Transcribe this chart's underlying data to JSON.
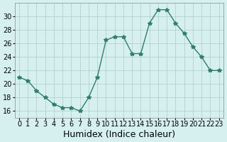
{
  "x": [
    0,
    1,
    2,
    3,
    4,
    5,
    6,
    7,
    8,
    9,
    10,
    11,
    12,
    13,
    14,
    15,
    16,
    17,
    18,
    19,
    20,
    21,
    22,
    23
  ],
  "y": [
    21,
    20.5,
    19,
    18,
    17,
    16.5,
    16.5,
    16,
    18,
    21,
    26.5,
    27,
    27,
    24.5,
    24.5,
    29,
    31,
    31,
    29,
    27.5,
    25.5,
    24,
    22,
    22
  ],
  "line_color": "#2e7d6e",
  "marker": "*",
  "marker_size": 4,
  "bg_color": "#d6f0f0",
  "grid_color": "#b0c8c8",
  "xlabel": "Humidex (Indice chaleur)",
  "xlabel_fontsize": 9,
  "tick_fontsize": 7,
  "ylim": [
    15,
    32
  ],
  "xlim": [
    -0.5,
    23.5
  ],
  "yticks": [
    16,
    18,
    20,
    22,
    24,
    26,
    28,
    30
  ],
  "xticks": [
    0,
    1,
    2,
    3,
    4,
    5,
    6,
    7,
    8,
    9,
    10,
    11,
    12,
    13,
    14,
    15,
    16,
    17,
    18,
    19,
    20,
    21,
    22,
    23
  ]
}
